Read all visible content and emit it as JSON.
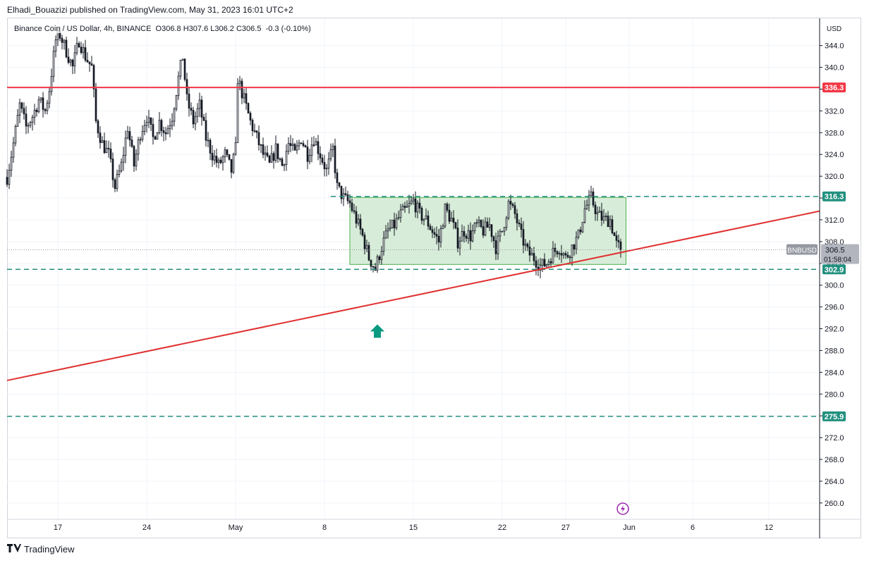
{
  "header": {
    "text": "Elhadi_Bouazizi published on TradingView.com, May 31, 2023 16:01 UTC+2"
  },
  "legend": {
    "symbol": "Binance Coin / US Dollar, 4h, BINANCE",
    "o_label": "O",
    "o": "306.8",
    "h_label": "H",
    "h": "307.6",
    "l_label": "L",
    "l": "306.2",
    "c_label": "C",
    "c": "306.5",
    "change": "-0.3 (-0.10%)"
  },
  "price_scale": {
    "currency": "USD"
  },
  "price_badge": {
    "symbol": "BNBUSD",
    "price": "306.5",
    "countdown": "01:58:04"
  },
  "brand": {
    "name": "TradingView",
    "logo_icon": "tradingview-logo-icon"
  },
  "colors": {
    "up": "#ffffff",
    "down": "#131722",
    "wick": "#131722",
    "resistance": "#f23645",
    "trendline": "#e03030",
    "dashed": "#22907f",
    "box_fill": "#c8e6c9",
    "box_stroke": "#4caf50",
    "arrow": "#089981",
    "grid": "#f0f3fa"
  },
  "chart_data": {
    "type": "candlestick",
    "title": "",
    "xlabel": "",
    "ylabel": "",
    "ylim": [
      257,
      349
    ],
    "y_ticks": [
      "260.0",
      "264.0",
      "268.0",
      "272.0",
      "276.0",
      "280.0",
      "284.0",
      "288.0",
      "292.0",
      "296.0",
      "300.0",
      "304.0",
      "308.0",
      "312.0",
      "316.0",
      "320.0",
      "324.0",
      "328.0",
      "332.0",
      "336.0",
      "340.0",
      "344.0"
    ],
    "x_ticks": [
      {
        "label": "17",
        "date": "2023-04-17"
      },
      {
        "label": "24",
        "date": "2023-04-24"
      },
      {
        "label": "May",
        "date": "2023-05-01"
      },
      {
        "label": "8",
        "date": "2023-05-08"
      },
      {
        "label": "15",
        "date": "2023-05-15"
      },
      {
        "label": "22",
        "date": "2023-05-22"
      },
      {
        "label": "27",
        "date": "2023-05-27"
      },
      {
        "label": "Jun",
        "date": "2023-06-01"
      },
      {
        "label": "6",
        "date": "2023-06-06"
      },
      {
        "label": "12",
        "date": "2023-06-12"
      }
    ],
    "x_range": [
      "2023-04-13",
      "2023-06-16"
    ],
    "close_anchors": [
      [
        "2023-04-13T00:00",
        319.8
      ],
      [
        "2023-04-13T12:00",
        326
      ],
      [
        "2023-04-14T00:00",
        333
      ],
      [
        "2023-04-14T12:00",
        329
      ],
      [
        "2023-04-15T00:00",
        331
      ],
      [
        "2023-04-15T12:00",
        334
      ],
      [
        "2023-04-16T00:00",
        332
      ],
      [
        "2023-04-16T08:00",
        336
      ],
      [
        "2023-04-16T20:00",
        345
      ],
      [
        "2023-04-17T04:00",
        346
      ],
      [
        "2023-04-17T16:00",
        343
      ],
      [
        "2023-04-18T04:00",
        340
      ],
      [
        "2023-04-18T16:00",
        345
      ],
      [
        "2023-04-19T04:00",
        342
      ],
      [
        "2023-04-19T16:00",
        340
      ],
      [
        "2023-04-20T00:00",
        330
      ],
      [
        "2023-04-20T12:00",
        326
      ],
      [
        "2023-04-21T00:00",
        324
      ],
      [
        "2023-04-21T12:00",
        318
      ],
      [
        "2023-04-22T00:00",
        322
      ],
      [
        "2023-04-22T12:00",
        329
      ],
      [
        "2023-04-23T00:00",
        322
      ],
      [
        "2023-04-23T12:00",
        328
      ],
      [
        "2023-04-24T00:00",
        331
      ],
      [
        "2023-04-24T12:00",
        327
      ],
      [
        "2023-04-25T00:00",
        330
      ],
      [
        "2023-04-25T12:00",
        328
      ],
      [
        "2023-04-26T00:00",
        331
      ],
      [
        "2023-04-26T12:00",
        338
      ],
      [
        "2023-04-26T20:00",
        342
      ],
      [
        "2023-04-27T04:00",
        334
      ],
      [
        "2023-04-27T16:00",
        330
      ],
      [
        "2023-04-28T04:00",
        333
      ],
      [
        "2023-04-28T16:00",
        327
      ],
      [
        "2023-04-29T04:00",
        324
      ],
      [
        "2023-04-29T16:00",
        322
      ],
      [
        "2023-04-30T04:00",
        324
      ],
      [
        "2023-04-30T16:00",
        321
      ],
      [
        "2023-05-01T00:00",
        325
      ],
      [
        "2023-05-01T04:00",
        338
      ],
      [
        "2023-05-01T16:00",
        334
      ],
      [
        "2023-05-02T04:00",
        330
      ],
      [
        "2023-05-02T16:00",
        327
      ],
      [
        "2023-05-03T04:00",
        324
      ],
      [
        "2023-05-03T16:00",
        322
      ],
      [
        "2023-05-04T04:00",
        325
      ],
      [
        "2023-05-04T16:00",
        322
      ],
      [
        "2023-05-05T04:00",
        326
      ],
      [
        "2023-05-05T16:00",
        324
      ],
      [
        "2023-05-06T04:00",
        327
      ],
      [
        "2023-05-06T16:00",
        324
      ],
      [
        "2023-05-07T04:00",
        327
      ],
      [
        "2023-05-07T16:00",
        324
      ],
      [
        "2023-05-08T04:00",
        321
      ],
      [
        "2023-05-08T16:00",
        325
      ],
      [
        "2023-05-09T00:00",
        318
      ],
      [
        "2023-05-09T12:00",
        316
      ],
      [
        "2023-05-10T00:00",
        315
      ],
      [
        "2023-05-10T12:00",
        312
      ],
      [
        "2023-05-11T00:00",
        309
      ],
      [
        "2023-05-11T12:00",
        305
      ],
      [
        "2023-05-12T00:00",
        303
      ],
      [
        "2023-05-12T12:00",
        307
      ],
      [
        "2023-05-13T00:00",
        310
      ],
      [
        "2023-05-13T12:00",
        311
      ],
      [
        "2023-05-14T00:00",
        313
      ],
      [
        "2023-05-14T12:00",
        314
      ],
      [
        "2023-05-15T00:00",
        315.5
      ],
      [
        "2023-05-15T12:00",
        313
      ],
      [
        "2023-05-16T00:00",
        312
      ],
      [
        "2023-05-16T12:00",
        310
      ],
      [
        "2023-05-17T00:00",
        308
      ],
      [
        "2023-05-17T12:00",
        314
      ],
      [
        "2023-05-18T00:00",
        312
      ],
      [
        "2023-05-18T12:00",
        308
      ],
      [
        "2023-05-19T00:00",
        310
      ],
      [
        "2023-05-19T12:00",
        309
      ],
      [
        "2023-05-20T00:00",
        311
      ],
      [
        "2023-05-20T12:00",
        310
      ],
      [
        "2023-05-21T00:00",
        311
      ],
      [
        "2023-05-21T12:00",
        307
      ],
      [
        "2023-05-22T00:00",
        310
      ],
      [
        "2023-05-22T12:00",
        315
      ],
      [
        "2023-05-23T00:00",
        313
      ],
      [
        "2023-05-23T12:00",
        309
      ],
      [
        "2023-05-24T00:00",
        306
      ],
      [
        "2023-05-24T12:00",
        305
      ],
      [
        "2023-05-25T00:00",
        303.5
      ],
      [
        "2023-05-25T12:00",
        304
      ],
      [
        "2023-05-26T00:00",
        306
      ],
      [
        "2023-05-26T12:00",
        307
      ],
      [
        "2023-05-27T00:00",
        305
      ],
      [
        "2023-05-27T12:00",
        307
      ],
      [
        "2023-05-28T00:00",
        309
      ],
      [
        "2023-05-28T12:00",
        314
      ],
      [
        "2023-05-29T00:00",
        316
      ],
      [
        "2023-05-29T12:00",
        313
      ],
      [
        "2023-05-30T00:00",
        312
      ],
      [
        "2023-05-30T12:00",
        312
      ],
      [
        "2023-05-31T00:00",
        307.5
      ],
      [
        "2023-05-31T08:00",
        306.5
      ]
    ],
    "horizontal_levels": [
      {
        "price": 336.3,
        "label": "336.3",
        "style": "solid",
        "color": "#f23645"
      },
      {
        "price": 316.3,
        "label": "316.3",
        "style": "dashed",
        "color": "#22907f",
        "from": "2023-05-08T12:00"
      },
      {
        "price": 302.9,
        "label": "302.9",
        "style": "dashed",
        "color": "#22907f"
      },
      {
        "price": 275.9,
        "label": "275.9",
        "style": "dashed",
        "color": "#22907f"
      }
    ],
    "trendline": {
      "p1": [
        "2023-04-13T00:00",
        282.5
      ],
      "p2": [
        "2023-06-16T00:00",
        313.6
      ],
      "color": "#e03030"
    },
    "range_box": {
      "x1": "2023-05-10T00:00",
      "x2": "2023-05-31T18:00",
      "y1": 303.8,
      "y2": 316.1
    },
    "arrow": {
      "date": "2023-05-12T04:00",
      "price": 291.5,
      "direction": "up"
    },
    "event_marker": {
      "date": "2023-05-31T12:00",
      "icon": "lightning-icon"
    },
    "last_price": 306.5
  }
}
